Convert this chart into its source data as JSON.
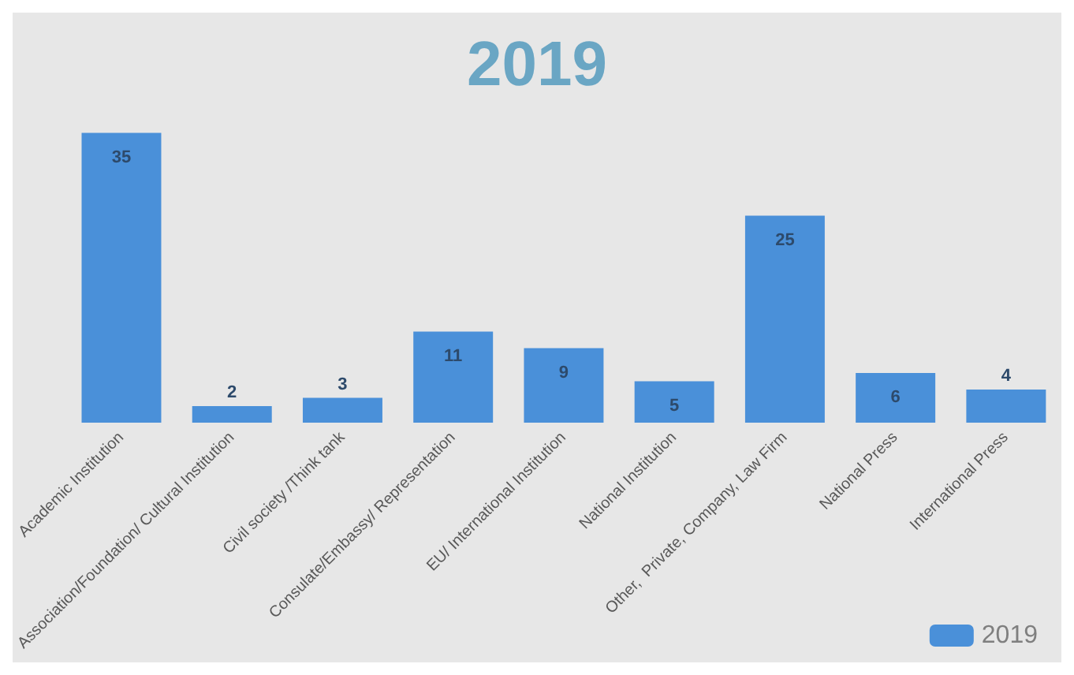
{
  "chart_data": {
    "type": "bar",
    "title": "2019",
    "categories": [
      "Academic Institution",
      "Association/Foundation/ Cultural Institution",
      "Civil society /Think tank",
      "Consulate/Embassy/ Representation",
      "EU/ International Institution",
      "National Institution",
      "Other,  Private, Company, Law Firm",
      "National Press",
      "International Press"
    ],
    "series": [
      {
        "name": "2019",
        "color": "#4a90d9",
        "values": [
          35,
          2,
          3,
          11,
          9,
          5,
          25,
          6,
          4
        ]
      }
    ],
    "data_labels": true,
    "grid": false,
    "legend": "bottom right"
  }
}
